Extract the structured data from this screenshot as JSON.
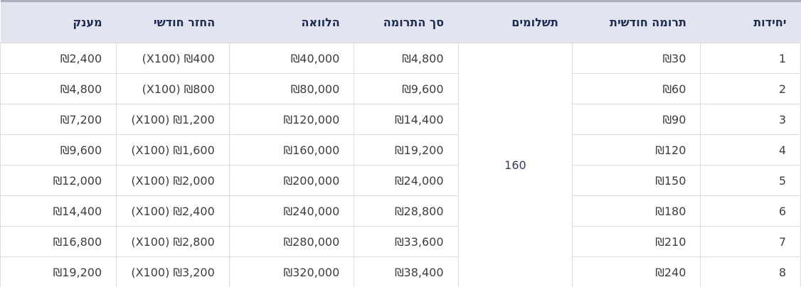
{
  "table": {
    "columns": [
      {
        "key": "units",
        "label": "יחידות",
        "width_pct": 12.5
      },
      {
        "key": "monthly_donation",
        "label": "תרומה חודשית",
        "width_pct": 16.0
      },
      {
        "key": "payments",
        "label": "תשלומים",
        "width_pct": 14.3
      },
      {
        "key": "total_donation",
        "label": "סך התרומה",
        "width_pct": 13.0
      },
      {
        "key": "loan",
        "label": "הלוואה",
        "width_pct": 15.6
      },
      {
        "key": "monthly_repayment",
        "label": "החזר חודשי",
        "width_pct": 14.1
      },
      {
        "key": "grant",
        "label": "מענק",
        "width_pct": 14.5
      }
    ],
    "payments_value": "160",
    "rows": [
      {
        "units": "1",
        "monthly_donation": "₪30",
        "total_donation": "₪4,800",
        "loan": "₪40,000",
        "monthly_repayment": "(X100) ₪400",
        "grant": "₪2,400"
      },
      {
        "units": "2",
        "monthly_donation": "₪60",
        "total_donation": "₪9,600",
        "loan": "₪80,000",
        "monthly_repayment": "(X100) ₪800",
        "grant": "₪4,800"
      },
      {
        "units": "3",
        "monthly_donation": "₪90",
        "total_donation": "₪14,400",
        "loan": "₪120,000",
        "monthly_repayment": "(X100) ₪1,200",
        "grant": "₪7,200"
      },
      {
        "units": "4",
        "monthly_donation": "₪120",
        "total_donation": "₪19,200",
        "loan": "₪160,000",
        "monthly_repayment": "(X100) ₪1,600",
        "grant": "₪9,600"
      },
      {
        "units": "5",
        "monthly_donation": "₪150",
        "total_donation": "₪24,000",
        "loan": "₪200,000",
        "monthly_repayment": "(X100) ₪2,000",
        "grant": "₪12,000"
      },
      {
        "units": "6",
        "monthly_donation": "₪180",
        "total_donation": "₪28,800",
        "loan": "₪240,000",
        "monthly_repayment": "(X100) ₪2,400",
        "grant": "₪14,400"
      },
      {
        "units": "7",
        "monthly_donation": "₪210",
        "total_donation": "₪33,600",
        "loan": "₪280,000",
        "monthly_repayment": "(X100) ₪2,800",
        "grant": "₪16,800"
      },
      {
        "units": "8",
        "monthly_donation": "₪240",
        "total_donation": "₪38,400",
        "loan": "₪320,000",
        "monthly_repayment": "(X100) ₪3,200",
        "grant": "₪19,200"
      }
    ]
  },
  "colors": {
    "header_bg": "#e2e4f0",
    "header_text": "#1e2a52",
    "header_top_border": "#a9aebb",
    "body_text": "#3e3e3e",
    "payments_text": "#2f3d5a",
    "row_border": "#dcdcdc"
  }
}
